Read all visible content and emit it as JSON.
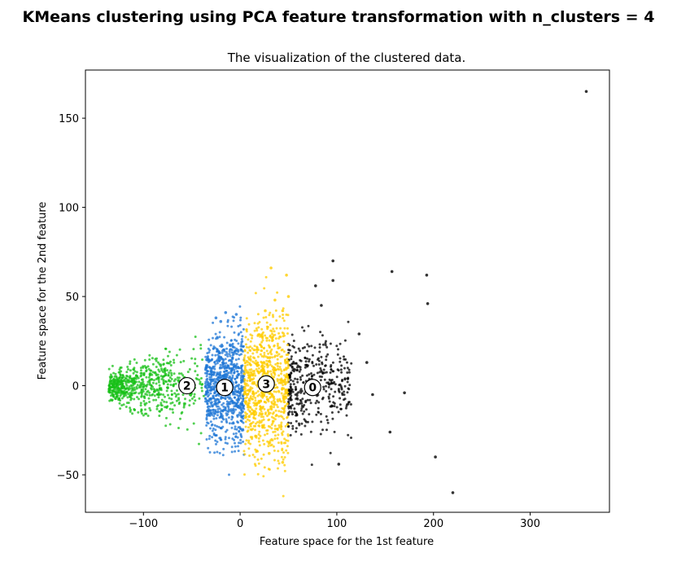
{
  "figure": {
    "suptitle": "KMeans clustering using PCA feature transformation with n_clusters = 4"
  },
  "chart_data": {
    "type": "scatter",
    "title": "The visualization of the clustered data.",
    "xlabel": "Feature space for the 1st feature",
    "ylabel": "Feature space for the 2nd feature",
    "xlim": [
      -160,
      382
    ],
    "ylim": [
      -71,
      177
    ],
    "xticks": [
      -100,
      0,
      100,
      200,
      300
    ],
    "xtick_labels": [
      "−100",
      "0",
      "100",
      "200",
      "300"
    ],
    "yticks": [
      -50,
      0,
      50,
      100,
      150
    ],
    "ytick_labels": [
      "−50",
      "0",
      "50",
      "100",
      "150"
    ],
    "grid": false,
    "clusters": [
      {
        "label": "0",
        "color": "#000000",
        "x_range": [
          50,
          115
        ],
        "center": [
          75,
          -1
        ],
        "outliers": [
          [
            358,
            165
          ],
          [
            96,
            70
          ],
          [
            157,
            64
          ],
          [
            193,
            62
          ],
          [
            96,
            59
          ],
          [
            78,
            56
          ],
          [
            84,
            45
          ],
          [
            194,
            46
          ],
          [
            123,
            29
          ],
          [
            131,
            13
          ],
          [
            137,
            -5
          ],
          [
            170,
            -4
          ],
          [
            155,
            -26
          ],
          [
            202,
            -40
          ],
          [
            220,
            -60
          ],
          [
            102,
            -44
          ]
        ]
      },
      {
        "label": "1",
        "color": "#1f77d6",
        "x_range": [
          -36,
          4
        ],
        "center": [
          -16,
          -1
        ],
        "outliers": [
          [
            -15,
            41
          ],
          [
            -25,
            38
          ],
          [
            -4,
            40
          ],
          [
            -20,
            36
          ]
        ]
      },
      {
        "label": "2",
        "color": "#18c018",
        "x_range": [
          -136,
          -36
        ],
        "center": [
          -55,
          0
        ],
        "outliers": [
          [
            -133,
            5
          ],
          [
            -128,
            2
          ]
        ]
      },
      {
        "label": "3",
        "color": "#ffcc00",
        "x_range": [
          4,
          50
        ],
        "center": [
          27,
          1
        ],
        "outliers": [
          [
            32,
            66
          ],
          [
            48,
            62
          ],
          [
            50,
            50
          ],
          [
            44,
            42
          ],
          [
            36,
            48
          ],
          [
            26,
            42
          ],
          [
            30,
            -38
          ],
          [
            44,
            -43
          ]
        ]
      }
    ]
  }
}
